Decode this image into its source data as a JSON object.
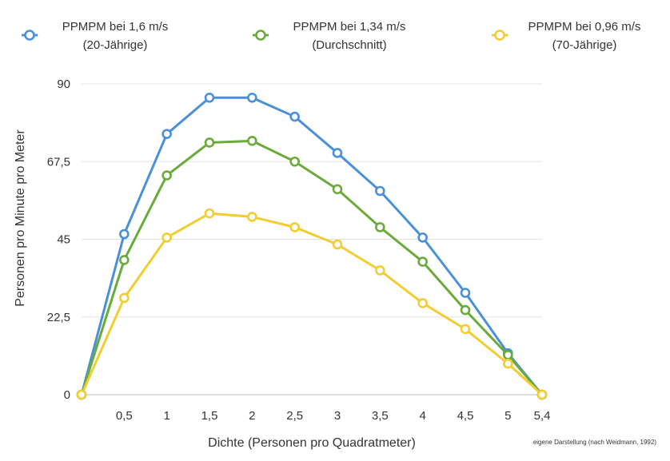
{
  "chart_data": {
    "type": "line",
    "x": [
      "0",
      "0,5",
      "1",
      "1,5",
      "2",
      "2,5",
      "3",
      "3,5",
      "4",
      "4,5",
      "5",
      "5,4"
    ],
    "x_values": [
      0,
      0.5,
      1,
      1.5,
      2,
      2.5,
      3,
      3.5,
      4,
      4.5,
      5,
      5.4
    ],
    "x_tick_labels": [
      "0,5",
      "1",
      "1,5",
      "2",
      "2,5",
      "3",
      "3,5",
      "4",
      "4,5",
      "5",
      "5,4"
    ],
    "y_tick_labels": [
      "0",
      "22,5",
      "45",
      "67,5",
      "90"
    ],
    "ylim": [
      0,
      90
    ],
    "xlabel": "Dichte (Personen pro Quadratmeter)",
    "ylabel": "Personen pro Minute pro Meter",
    "grid": "horizontal",
    "legend_position": "top",
    "series": [
      {
        "name_line1": "PPMPM bei 1,6 m/s",
        "name_line2": "(20-Jährige)",
        "color": "#4a90d9",
        "values": [
          0,
          46.5,
          75.5,
          86,
          86,
          80.5,
          70,
          59,
          45.5,
          29.5,
          12,
          0
        ]
      },
      {
        "name_line1": "PPMPM bei 1,34 m/s",
        "name_line2": "(Durchschnitt)",
        "color": "#6aaa3a",
        "values": [
          0,
          39,
          63.5,
          73,
          73.5,
          67.5,
          59.5,
          48.5,
          38.5,
          24.5,
          11.5,
          0
        ]
      },
      {
        "name_line1": "PPMPM bei 0,96 m/s",
        "name_line2": "(70-Jährige)",
        "color": "#f2cc30",
        "values": [
          0,
          28,
          45.5,
          52.5,
          51.5,
          48.5,
          43.5,
          36,
          26.5,
          19,
          9,
          0
        ]
      }
    ],
    "credit": "eigene Darstellung (nach Weidmann, 1992)"
  }
}
